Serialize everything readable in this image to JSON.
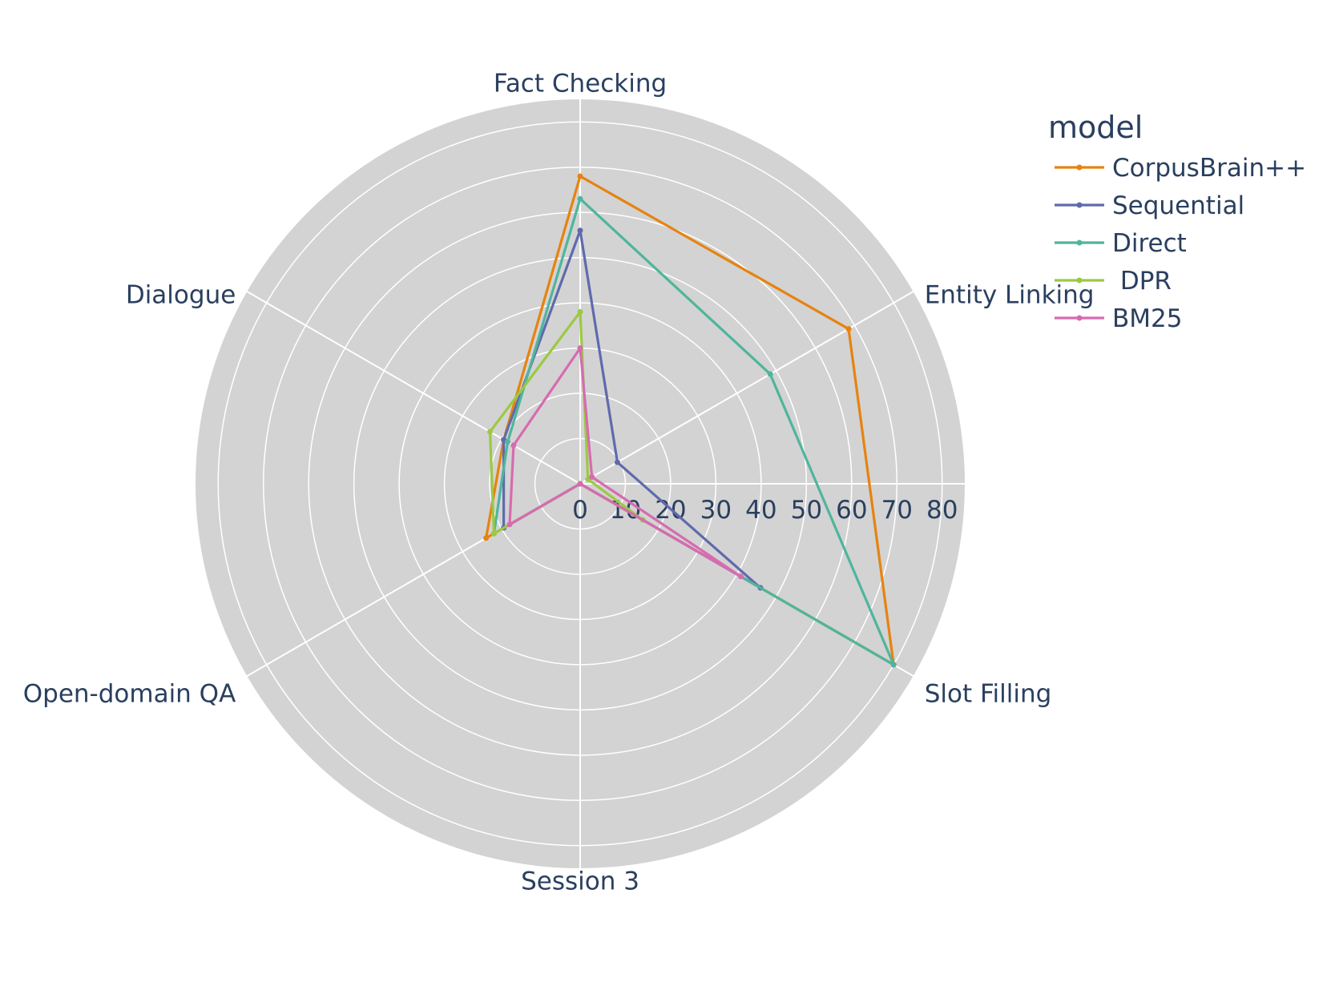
{
  "chart_data": {
    "type": "radar",
    "categories": [
      "Fact Checking",
      "Entity Linking",
      "Slot Filling",
      "Session 3",
      "Open-domain QA",
      "Dialogue"
    ],
    "radial_range": [
      0,
      85
    ],
    "radial_ticks": [
      0,
      10,
      20,
      30,
      40,
      50,
      60,
      70,
      80
    ],
    "legend_title": "model",
    "legend_placement": "top-right",
    "background": "#d3d3d3",
    "grid": true,
    "series": [
      {
        "name": "CorpusBrain++",
        "color": "#e68310",
        "values": [
          68,
          68.5,
          80,
          0,
          24,
          19.5
        ]
      },
      {
        "name": "Sequential",
        "color": "#5f6aad",
        "values": [
          56,
          9.5,
          46,
          0,
          19.5,
          19.5
        ]
      },
      {
        "name": "Direct",
        "color": "#4fb59c",
        "values": [
          63,
          48.5,
          80,
          0,
          22,
          18.5
        ]
      },
      {
        "name": " DPR",
        "color": "#9bc942",
        "values": [
          38,
          2,
          16,
          0,
          22,
          23
        ]
      },
      {
        "name": "BM25",
        "color": "#d66bb0",
        "values": [
          30,
          3,
          41,
          0,
          18,
          17
        ]
      }
    ]
  }
}
